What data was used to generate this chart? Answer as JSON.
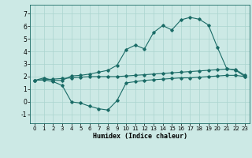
{
  "title": "",
  "xlabel": "Humidex (Indice chaleur)",
  "xlim": [
    -0.5,
    23.5
  ],
  "ylim": [
    -1.7,
    7.7
  ],
  "yticks": [
    -1,
    0,
    1,
    2,
    3,
    4,
    5,
    6,
    7
  ],
  "xticks": [
    0,
    1,
    2,
    3,
    4,
    5,
    6,
    7,
    8,
    9,
    10,
    11,
    12,
    13,
    14,
    15,
    16,
    17,
    18,
    19,
    20,
    21,
    22,
    23
  ],
  "bg_color": "#cce9e5",
  "grid_color": "#aad4cf",
  "line_color": "#1a6b66",
  "line1_y": [
    1.7,
    1.9,
    1.7,
    1.7,
    2.05,
    2.1,
    2.2,
    2.35,
    2.5,
    2.9,
    4.15,
    4.5,
    4.2,
    5.5,
    6.05,
    5.7,
    6.5,
    6.7,
    6.55,
    6.1,
    4.3,
    2.65,
    2.5,
    2.0
  ],
  "line2_y": [
    1.7,
    1.75,
    1.8,
    1.85,
    1.9,
    1.95,
    2.0,
    2.0,
    2.0,
    2.0,
    2.05,
    2.1,
    2.15,
    2.2,
    2.25,
    2.3,
    2.35,
    2.4,
    2.45,
    2.5,
    2.55,
    2.6,
    2.55,
    2.1
  ],
  "line3_y": [
    1.7,
    1.75,
    1.6,
    1.3,
    0.0,
    -0.1,
    -0.35,
    -0.55,
    -0.65,
    0.1,
    1.5,
    1.6,
    1.7,
    1.75,
    1.8,
    1.85,
    1.9,
    1.9,
    1.95,
    2.0,
    2.05,
    2.1,
    2.1,
    2.0
  ]
}
